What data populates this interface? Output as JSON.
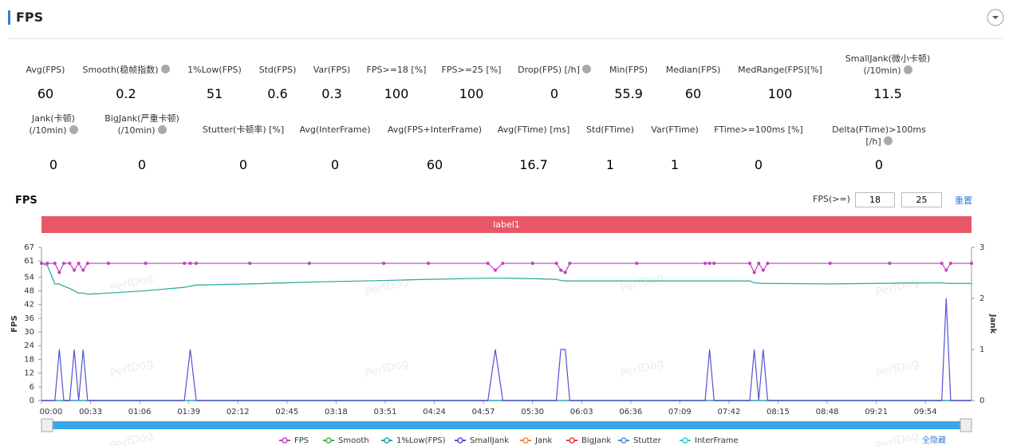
{
  "header": {
    "title": "FPS"
  },
  "stats": {
    "rows": [
      [
        {
          "label": "Avg(FPS)",
          "value": 60
        },
        {
          "label": "Smooth(稳帧指数)",
          "value": 0.2,
          "help": true
        },
        {
          "label": "1%Low(FPS)",
          "value": 51
        },
        {
          "label": "Std(FPS)",
          "value": 0.6
        },
        {
          "label": "Var(FPS)",
          "value": 0.3
        },
        {
          "label": "FPS>=18 [%]",
          "value": 100
        },
        {
          "label": "FPS>=25 [%]",
          "value": 100
        },
        {
          "label": "Drop(FPS) [/h]",
          "value": 0,
          "help": true
        },
        {
          "label": "Min(FPS)",
          "value": 55.9
        },
        {
          "label": "Median(FPS)",
          "value": 60
        },
        {
          "label": "MedRange(FPS)[%]",
          "value": 100
        },
        {
          "label": "SmallJank(微小卡顿)\n(/10min)",
          "value": 11.5,
          "help": true
        }
      ],
      [
        {
          "label": "Jank(卡顿)\n(/10min)",
          "value": 0,
          "help": true
        },
        {
          "label": "BigJank(严重卡顿)\n(/10min)",
          "value": 0,
          "help": true
        },
        {
          "label": "Stutter(卡顿率) [%]",
          "value": 0
        },
        {
          "label": "Avg(InterFrame)",
          "value": 0
        },
        {
          "label": "Avg(FPS+InterFrame)",
          "value": 60
        },
        {
          "label": "Avg(FTime) [ms]",
          "value": 16.7
        },
        {
          "label": "Std(FTime)",
          "value": 1
        },
        {
          "label": "Var(FTime)",
          "value": 1
        },
        {
          "label": "FTime>=100ms [%]",
          "value": 0
        },
        {
          "label": "Delta(FTime)>100ms [/h]",
          "value": 0,
          "help": true
        }
      ]
    ]
  },
  "controls": {
    "threshold_label": "FPS(>=)",
    "thresholds": [
      18,
      25
    ],
    "reset": "重置"
  },
  "label_bar": "label1",
  "watermark": "PerfDog",
  "legend_toggle": "全隐藏",
  "chart_data": {
    "type": "line",
    "title": "FPS",
    "ylabel": "FPS",
    "y2label": "Jank",
    "grid": false,
    "x": [
      0,
      4,
      9,
      12,
      15,
      19,
      22,
      25,
      28,
      31,
      45,
      70,
      96,
      100,
      104,
      140,
      180,
      230,
      260,
      300,
      305,
      310,
      330,
      346,
      349,
      352,
      355,
      400,
      446,
      449,
      452,
      476,
      479,
      482,
      485,
      488,
      530,
      570,
      605,
      608,
      611,
      625
    ],
    "xlim": [
      0,
      625
    ],
    "xticks": [
      {
        "value": 0,
        "label": "00:00"
      },
      {
        "value": 33,
        "label": "00:33"
      },
      {
        "value": 66,
        "label": "01:06"
      },
      {
        "value": 99,
        "label": "01:39"
      },
      {
        "value": 132,
        "label": "02:12"
      },
      {
        "value": 165,
        "label": "02:45"
      },
      {
        "value": 198,
        "label": "03:18"
      },
      {
        "value": 231,
        "label": "03:51"
      },
      {
        "value": 264,
        "label": "04:24"
      },
      {
        "value": 297,
        "label": "04:57"
      },
      {
        "value": 330,
        "label": "05:30"
      },
      {
        "value": 363,
        "label": "06:03"
      },
      {
        "value": 396,
        "label": "06:36"
      },
      {
        "value": 429,
        "label": "07:09"
      },
      {
        "value": 462,
        "label": "07:42"
      },
      {
        "value": 495,
        "label": "08:15"
      },
      {
        "value": 528,
        "label": "08:48"
      },
      {
        "value": 561,
        "label": "09:21"
      },
      {
        "value": 594,
        "label": "09:54"
      }
    ],
    "ylim": [
      0,
      67
    ],
    "yticks": [
      0,
      6,
      12,
      18,
      24,
      30,
      36,
      42,
      48,
      54,
      61,
      67
    ],
    "y2lim": [
      0,
      3
    ],
    "y2ticks": [
      0,
      1,
      2,
      3
    ],
    "series": [
      {
        "name": "Smooth",
        "color": "#4caf50",
        "values": [
          0,
          0,
          0,
          0,
          0,
          0,
          0,
          0,
          0,
          0,
          0,
          0,
          0,
          0,
          0,
          0,
          0,
          0,
          0,
          0,
          0,
          0,
          0,
          0,
          0,
          0,
          0,
          0,
          0,
          0,
          0,
          0,
          0,
          0,
          0,
          0,
          0,
          0,
          0,
          0,
          0,
          0
        ]
      },
      {
        "name": "Jank",
        "color": "#f0883a",
        "axis": "y2",
        "values": [
          0,
          0,
          0,
          0,
          0,
          0,
          0,
          0,
          0,
          0,
          0,
          0,
          0,
          0,
          0,
          0,
          0,
          0,
          0,
          0,
          0,
          0,
          0,
          0,
          0,
          0,
          0,
          0,
          0,
          0,
          0,
          0,
          0,
          0,
          0,
          0,
          0,
          0,
          0,
          0,
          0,
          0
        ]
      },
      {
        "name": "BigJank",
        "color": "#e0403c",
        "axis": "y2",
        "values": [
          0,
          0,
          0,
          0,
          0,
          0,
          0,
          0,
          0,
          0,
          0,
          0,
          0,
          0,
          0,
          0,
          0,
          0,
          0,
          0,
          0,
          0,
          0,
          0,
          0,
          0,
          0,
          0,
          0,
          0,
          0,
          0,
          0,
          0,
          0,
          0,
          0,
          0,
          0,
          0,
          0,
          0
        ]
      },
      {
        "name": "Stutter",
        "color": "#4a8fe0",
        "values": [
          0,
          0,
          0,
          0,
          0,
          0,
          0,
          0,
          0,
          0,
          0,
          0,
          0,
          0,
          0,
          0,
          0,
          0,
          0,
          0,
          0,
          0,
          0,
          0,
          0,
          0,
          0,
          0,
          0,
          0,
          0,
          0,
          0,
          0,
          0,
          0,
          0,
          0,
          0,
          0,
          0,
          0
        ]
      },
      {
        "name": "InterFrame",
        "color": "#3cc8d8",
        "values": [
          0,
          0,
          0,
          0,
          0,
          0,
          0,
          0,
          0,
          0,
          0,
          0,
          0,
          0,
          0,
          0,
          0,
          0,
          0,
          0,
          0,
          0,
          0,
          0,
          0,
          0,
          0,
          0,
          0,
          0,
          0,
          0,
          0,
          0,
          0,
          0,
          0,
          0,
          0,
          0,
          0,
          0
        ]
      },
      {
        "name": "1%Low(FPS)",
        "color": "#26a69a",
        "values": [
          60,
          59,
          51,
          51,
          50,
          49,
          48,
          47,
          47,
          46.5,
          47,
          48,
          49.5,
          50,
          50.5,
          51,
          51.8,
          52.5,
          53,
          53.5,
          53.5,
          53.5,
          53.3,
          53,
          52.5,
          52.3,
          52.3,
          52.3,
          52.3,
          52.3,
          52.3,
          52.3,
          51.5,
          51.3,
          51.2,
          51.2,
          51,
          51.3,
          51.5,
          51.3,
          51.2,
          51.2
        ]
      },
      {
        "name": "SmallJank",
        "color": "#5252d4",
        "axis": "y2",
        "values": [
          0,
          0,
          0,
          1,
          0,
          0,
          1,
          0,
          1,
          0,
          0,
          0,
          0,
          1,
          0,
          0,
          0,
          0,
          0,
          0,
          1,
          0,
          0,
          0,
          1,
          1,
          0,
          0,
          0,
          1,
          0,
          0,
          1,
          0,
          1,
          0,
          0,
          0,
          0,
          2,
          0,
          0
        ]
      },
      {
        "name": "FPS",
        "color": "#c040c0",
        "markers": true,
        "values": [
          60,
          60,
          60,
          56,
          60,
          60,
          57,
          60,
          57,
          60,
          60,
          60,
          60,
          60,
          60,
          60,
          60,
          60,
          60,
          60,
          57,
          60,
          60,
          60,
          57,
          56,
          60,
          60,
          60,
          60,
          60,
          60,
          56,
          60,
          57,
          60,
          60,
          60,
          60,
          57,
          60,
          60
        ]
      }
    ]
  }
}
